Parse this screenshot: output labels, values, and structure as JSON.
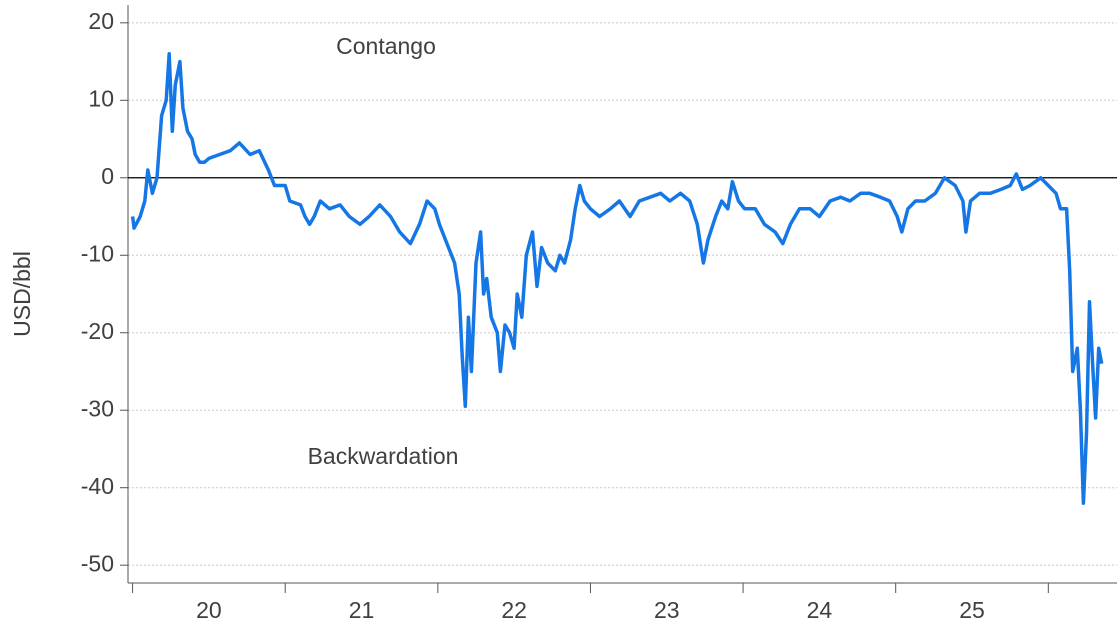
{
  "chart_data": {
    "type": "line",
    "y_label": "USD/bbl",
    "annotations": [
      "Contango",
      "Backwardation"
    ],
    "color": "#1577e6",
    "hline": 0,
    "xlim": [
      19.97,
      26.45
    ],
    "ylim": [
      -52.3,
      22.3
    ],
    "yticks": [
      20,
      10,
      0,
      -10,
      -20,
      -30,
      -40,
      -50
    ],
    "xticks": [
      {
        "value": 20.5,
        "label": "20"
      },
      {
        "value": 21.5,
        "label": "21"
      },
      {
        "value": 22.5,
        "label": "22"
      },
      {
        "value": 23.5,
        "label": "23"
      },
      {
        "value": 24.5,
        "label": "24"
      },
      {
        "value": 25.5,
        "label": "25"
      }
    ],
    "xminor_ticks": [
      20,
      21,
      22,
      23,
      24,
      25,
      26
    ],
    "grid": true,
    "x": [
      20.0,
      20.01,
      20.05,
      20.08,
      20.1,
      20.13,
      20.16,
      20.19,
      20.22,
      20.24,
      20.26,
      20.28,
      20.31,
      20.33,
      20.36,
      20.39,
      20.41,
      20.44,
      20.47,
      20.5,
      20.57,
      20.64,
      20.7,
      20.77,
      20.83,
      20.89,
      20.93,
      21.0,
      21.03,
      21.1,
      21.13,
      21.16,
      21.19,
      21.23,
      21.29,
      21.36,
      21.42,
      21.49,
      21.55,
      21.62,
      21.69,
      21.75,
      21.82,
      21.88,
      21.93,
      21.98,
      22.01,
      22.07,
      22.11,
      22.14,
      22.16,
      22.18,
      22.2,
      22.22,
      22.25,
      22.28,
      22.3,
      22.32,
      22.35,
      22.39,
      22.41,
      22.44,
      22.47,
      22.5,
      22.52,
      22.55,
      22.58,
      22.62,
      22.65,
      22.68,
      22.72,
      22.77,
      22.8,
      22.83,
      22.87,
      22.9,
      22.93,
      22.96,
      23.0,
      23.06,
      23.13,
      23.19,
      23.26,
      23.32,
      23.39,
      23.46,
      23.52,
      23.59,
      23.65,
      23.7,
      23.74,
      23.77,
      23.82,
      23.86,
      23.9,
      23.93,
      23.97,
      24.01,
      24.08,
      24.14,
      24.21,
      24.26,
      24.31,
      24.37,
      24.44,
      24.5,
      24.57,
      24.64,
      24.7,
      24.77,
      24.83,
      24.9,
      24.96,
      25.01,
      25.04,
      25.08,
      25.13,
      25.19,
      25.26,
      25.32,
      25.39,
      25.44,
      25.46,
      25.49,
      25.55,
      25.62,
      25.69,
      25.75,
      25.79,
      25.83,
      25.88,
      25.95,
      26.0,
      26.05,
      26.08,
      26.12,
      26.14,
      26.16,
      26.19,
      26.21,
      26.23,
      26.25,
      26.27,
      26.29,
      26.31,
      26.33,
      26.35
    ],
    "values": [
      -5,
      -6.5,
      -5,
      -3,
      1,
      -2,
      0,
      8,
      10,
      16,
      6,
      12,
      15,
      9,
      6,
      5,
      3,
      2,
      2,
      2.5,
      3,
      3.5,
      4.5,
      3,
      3.5,
      1,
      -1,
      -1,
      -3,
      -3.5,
      -5,
      -6,
      -5,
      -3,
      -4,
      -3.5,
      -5,
      -6,
      -5,
      -3.5,
      -5,
      -7,
      -8.5,
      -6,
      -3,
      -4,
      -6,
      -9,
      -11,
      -15,
      -23,
      -29.5,
      -18,
      -25,
      -11,
      -7,
      -15,
      -13,
      -18,
      -20,
      -25,
      -19,
      -20,
      -22,
      -15,
      -18,
      -10,
      -7,
      -14,
      -9,
      -11,
      -12,
      -10,
      -11,
      -8,
      -4,
      -1,
      -3,
      -4,
      -5,
      -4,
      -3,
      -5,
      -3,
      -2.5,
      -2,
      -3,
      -2,
      -3,
      -6,
      -11,
      -8,
      -5,
      -3,
      -4,
      -0.5,
      -3,
      -4,
      -4,
      -6,
      -7,
      -8.5,
      -6,
      -4,
      -4,
      -5,
      -3,
      -2.5,
      -3,
      -2,
      -2,
      -2.5,
      -3,
      -5,
      -7,
      -4,
      -3,
      -3,
      -2,
      0,
      -1,
      -3,
      -7,
      -3,
      -2,
      -2,
      -1.5,
      -1,
      0.5,
      -1.5,
      -1,
      0,
      -1,
      -2,
      -4,
      -4,
      -12,
      -25,
      -22,
      -30,
      -42,
      -33,
      -16,
      -24,
      -31,
      -22,
      -24
    ]
  }
}
